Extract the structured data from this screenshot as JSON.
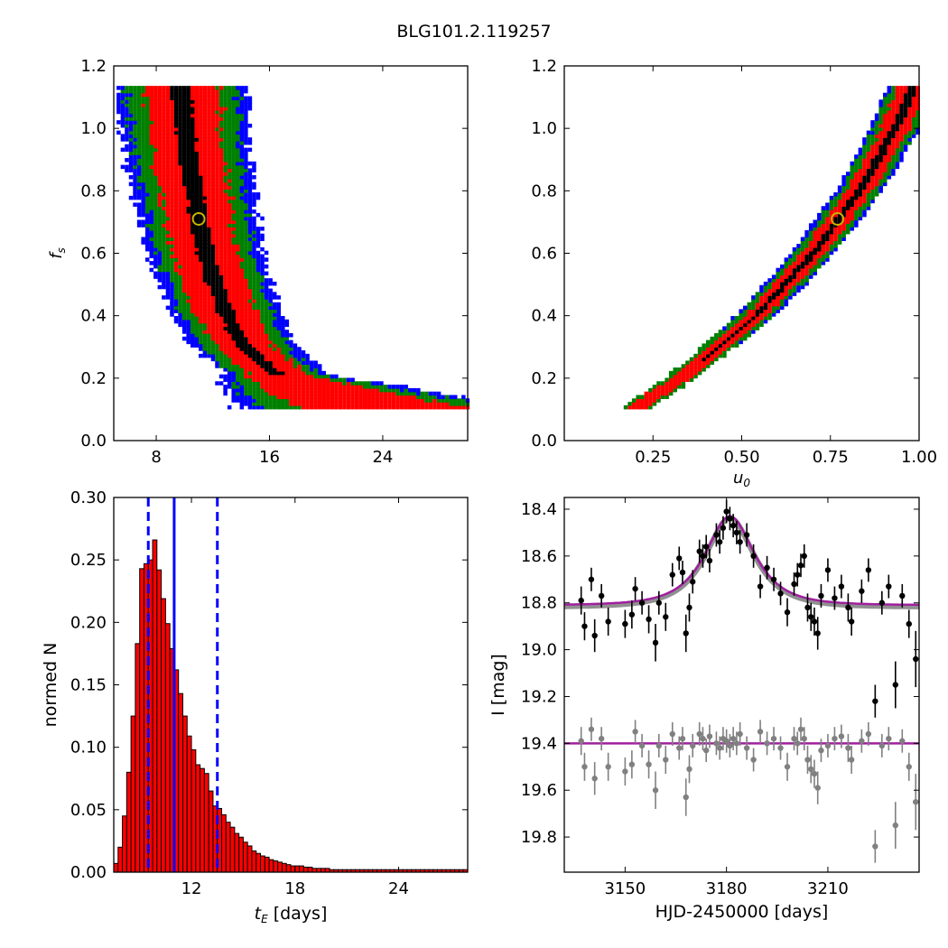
{
  "figure": {
    "title": "BLG101.2.119257"
  },
  "chart_data": [
    {
      "type": "heatmap",
      "panel": "top-left",
      "xlabel": "",
      "ylabel": "f_s",
      "xlim": [
        5,
        30
      ],
      "ylim": [
        0,
        1.2
      ],
      "xticks": [
        "8",
        "16",
        "24"
      ],
      "yticks": [
        "0.0",
        "0.2",
        "0.4",
        "0.6",
        "0.8",
        "1.0",
        "1.2"
      ],
      "colors": [
        "#000000",
        "#ff0000",
        "#008000",
        "#0000ff"
      ],
      "ridge": {
        "fs": [
          0.1,
          0.15,
          0.2,
          0.3,
          0.4,
          0.5,
          0.6,
          0.7,
          0.8,
          0.9,
          1.0,
          1.13
        ],
        "t_E": [
          24.0,
          20.0,
          16.5,
          14.0,
          12.8,
          12.0,
          11.3,
          10.9,
          10.5,
          10.1,
          9.9,
          9.6
        ]
      },
      "best_fit": {
        "t_E": 11.0,
        "fs": 0.71
      }
    },
    {
      "type": "heatmap",
      "panel": "top-right",
      "xlabel": "u_0",
      "ylabel": "",
      "xlim": [
        0,
        1.0
      ],
      "ylim": [
        0,
        1.2
      ],
      "xticks": [
        "0.25",
        "0.50",
        "0.75",
        "1.00"
      ],
      "yticks": [
        "0.0",
        "0.2",
        "0.4",
        "0.6",
        "0.8",
        "1.0",
        "1.2"
      ],
      "colors": [
        "#000000",
        "#ff0000",
        "#008000",
        "#0000ff"
      ],
      "ridge": {
        "fs": [
          0.1,
          0.2,
          0.4,
          0.6,
          0.8,
          1.0,
          1.13
        ],
        "u0": [
          0.2,
          0.33,
          0.54,
          0.7,
          0.83,
          0.93,
          0.98
        ]
      },
      "best_fit": {
        "u0": 0.77,
        "fs": 0.71
      }
    },
    {
      "type": "bar",
      "panel": "bottom-left",
      "xlabel": "t_E [days]",
      "ylabel": "normed N",
      "xlim": [
        7.5,
        28
      ],
      "ylim": [
        0,
        0.3
      ],
      "xticks": [
        "12",
        "18",
        "24"
      ],
      "yticks": [
        "0.00",
        "0.05",
        "0.10",
        "0.15",
        "0.20",
        "0.25",
        "0.30"
      ],
      "bin_start": 7.5,
      "bin_width": 0.25,
      "values": [
        0.007,
        0.02,
        0.045,
        0.08,
        0.125,
        0.183,
        0.243,
        0.247,
        0.25,
        0.266,
        0.242,
        0.219,
        0.199,
        0.179,
        0.162,
        0.143,
        0.125,
        0.109,
        0.098,
        0.086,
        0.083,
        0.079,
        0.065,
        0.053,
        0.051,
        0.046,
        0.04,
        0.036,
        0.031,
        0.028,
        0.024,
        0.021,
        0.017,
        0.015,
        0.013,
        0.012,
        0.01,
        0.009,
        0.008,
        0.007,
        0.006,
        0.005,
        0.005,
        0.005,
        0.004,
        0.004,
        0.003,
        0.003,
        0.003,
        0.003,
        0.002,
        0.002,
        0.002,
        0.002,
        0.002,
        0.002,
        0.002,
        0.002,
        0.002,
        0.002,
        0.002,
        0.002,
        0.002,
        0.002,
        0.002,
        0.002,
        0.002,
        0.002,
        0.002,
        0.002,
        0.002,
        0.002,
        0.002,
        0.002,
        0.002,
        0.002,
        0.002,
        0.002,
        0.002,
        0.002,
        0.002,
        0.002
      ],
      "bar_color": "#ff0000",
      "median": 11.0,
      "lower": 9.5,
      "upper": 13.5,
      "line_color": "#0000ff"
    },
    {
      "type": "scatter",
      "panel": "bottom-right",
      "xlabel": "HJD-2450000 [days]",
      "ylabel": "I [mag]",
      "xlim": [
        3132,
        3237
      ],
      "ylim": [
        19.95,
        18.35
      ],
      "xticks": [
        "3150",
        "3180",
        "3210"
      ],
      "yticks": [
        "18.4",
        "18.6",
        "18.8",
        "19.0",
        "19.2",
        "19.4",
        "19.6",
        "19.8"
      ],
      "model": {
        "t0": 3181,
        "baseline": 18.81,
        "peak": 18.43,
        "tE": 11.0,
        "u0": 0.77,
        "color": "#a020a0"
      },
      "residual_line": {
        "mag": 19.4,
        "color": "#a020a0"
      },
      "series": [
        {
          "color": "#000000",
          "t": [
            3137,
            3138,
            3140,
            3141,
            3143,
            3145,
            3150,
            3152,
            3153,
            3155,
            3157,
            3159,
            3160,
            3162,
            3164,
            3166,
            3167,
            3168,
            3169,
            3170,
            3172,
            3173,
            3174,
            3175,
            3177,
            3178,
            3179,
            3180,
            3181,
            3182,
            3183,
            3184,
            3186,
            3188,
            3190,
            3192,
            3194,
            3196,
            3198,
            3200,
            3201,
            3202,
            3203,
            3204,
            3205,
            3206,
            3207,
            3208,
            3210,
            3212,
            3214,
            3216,
            3217,
            3220,
            3222,
            3224,
            3226,
            3228,
            3230,
            3232,
            3234,
            3236
          ],
          "mag": [
            18.79,
            18.9,
            18.7,
            18.94,
            18.77,
            18.88,
            18.89,
            18.85,
            18.74,
            18.8,
            18.87,
            18.97,
            18.8,
            18.86,
            18.68,
            18.61,
            18.67,
            18.93,
            18.82,
            18.71,
            18.58,
            18.6,
            18.56,
            18.62,
            18.51,
            18.54,
            18.48,
            18.41,
            18.44,
            18.47,
            18.5,
            18.54,
            18.51,
            18.6,
            18.73,
            18.65,
            18.7,
            18.76,
            18.84,
            18.72,
            18.68,
            18.64,
            18.6,
            18.82,
            18.86,
            18.88,
            18.93,
            18.77,
            18.66,
            18.78,
            18.73,
            18.82,
            18.88,
            18.75,
            18.66,
            19.22,
            18.8,
            18.73,
            19.15,
            18.77,
            18.89,
            19.04
          ],
          "err": [
            0.06,
            0.06,
            0.05,
            0.07,
            0.05,
            0.06,
            0.06,
            0.06,
            0.05,
            0.05,
            0.06,
            0.08,
            0.05,
            0.06,
            0.05,
            0.05,
            0.05,
            0.08,
            0.06,
            0.05,
            0.05,
            0.05,
            0.05,
            0.05,
            0.05,
            0.05,
            0.05,
            0.05,
            0.05,
            0.05,
            0.05,
            0.05,
            0.05,
            0.05,
            0.05,
            0.05,
            0.05,
            0.05,
            0.06,
            0.05,
            0.05,
            0.05,
            0.05,
            0.06,
            0.06,
            0.06,
            0.07,
            0.05,
            0.05,
            0.05,
            0.05,
            0.06,
            0.06,
            0.05,
            0.05,
            0.07,
            0.05,
            0.05,
            0.1,
            0.05,
            0.06,
            0.12
          ]
        },
        {
          "color": "#808080",
          "t": [
            3137,
            3138,
            3140,
            3141,
            3143,
            3145,
            3150,
            3152,
            3153,
            3155,
            3157,
            3159,
            3160,
            3162,
            3164,
            3166,
            3167,
            3168,
            3169,
            3170,
            3172,
            3173,
            3174,
            3175,
            3177,
            3178,
            3179,
            3180,
            3181,
            3182,
            3183,
            3184,
            3186,
            3188,
            3190,
            3192,
            3194,
            3196,
            3198,
            3200,
            3201,
            3202,
            3203,
            3204,
            3205,
            3206,
            3207,
            3208,
            3210,
            3212,
            3214,
            3216,
            3217,
            3220,
            3222,
            3224,
            3226,
            3228,
            3230,
            3232,
            3234,
            3236
          ],
          "mag": [
            19.39,
            19.5,
            19.34,
            19.55,
            19.38,
            19.5,
            19.52,
            19.49,
            19.35,
            19.41,
            19.49,
            19.6,
            19.41,
            19.47,
            19.36,
            19.42,
            19.38,
            19.63,
            19.51,
            19.41,
            19.36,
            19.38,
            19.43,
            19.37,
            19.4,
            19.42,
            19.38,
            19.39,
            19.41,
            19.38,
            19.4,
            19.36,
            19.42,
            19.47,
            19.35,
            19.4,
            19.38,
            19.42,
            19.5,
            19.38,
            19.4,
            19.34,
            19.38,
            19.47,
            19.51,
            19.53,
            19.59,
            19.43,
            19.41,
            19.38,
            19.37,
            19.42,
            19.47,
            19.39,
            19.36,
            19.84,
            19.41,
            19.38,
            19.75,
            19.39,
            19.5,
            19.65
          ],
          "err": [
            0.06,
            0.06,
            0.05,
            0.07,
            0.05,
            0.06,
            0.06,
            0.06,
            0.05,
            0.05,
            0.06,
            0.08,
            0.05,
            0.06,
            0.05,
            0.05,
            0.05,
            0.08,
            0.06,
            0.05,
            0.05,
            0.05,
            0.05,
            0.05,
            0.05,
            0.05,
            0.05,
            0.05,
            0.05,
            0.05,
            0.05,
            0.05,
            0.05,
            0.05,
            0.05,
            0.05,
            0.05,
            0.05,
            0.06,
            0.05,
            0.05,
            0.05,
            0.05,
            0.06,
            0.06,
            0.06,
            0.07,
            0.05,
            0.05,
            0.05,
            0.05,
            0.06,
            0.06,
            0.05,
            0.05,
            0.07,
            0.05,
            0.05,
            0.1,
            0.05,
            0.06,
            0.12
          ]
        }
      ]
    }
  ]
}
